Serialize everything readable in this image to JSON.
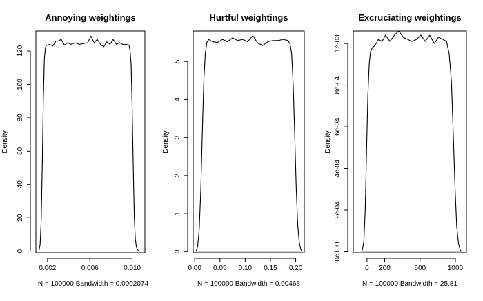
{
  "chart_data": [
    {
      "type": "line",
      "title": "Annoying weightings",
      "xlabel": "N = 100000   Bandwidth = 0.0002074",
      "ylabel": "Density",
      "xlim": [
        0.0009,
        0.0112
      ],
      "ylim": [
        -1,
        132
      ],
      "xticks": [
        0.002,
        0.006,
        0.01
      ],
      "xtick_labels": [
        "0.002",
        "0.006",
        "0.010"
      ],
      "yticks": [
        0,
        20,
        40,
        60,
        80,
        100,
        120
      ],
      "ytick_labels": [
        "0",
        "20",
        "40",
        "60",
        "80",
        "100",
        "120"
      ],
      "baseline": 0,
      "x": [
        0.0012,
        0.0013,
        0.0014,
        0.0015,
        0.0016,
        0.0017,
        0.0018,
        0.0019,
        0.002,
        0.0022,
        0.0025,
        0.0028,
        0.003,
        0.0033,
        0.0036,
        0.0039,
        0.0042,
        0.0046,
        0.005,
        0.0054,
        0.0058,
        0.0061,
        0.0064,
        0.0067,
        0.007,
        0.0073,
        0.0076,
        0.0079,
        0.0082,
        0.0085,
        0.0088,
        0.0091,
        0.0094,
        0.0097,
        0.0098,
        0.0099,
        0.01,
        0.0101,
        0.0102,
        0.0103,
        0.0104,
        0.0105,
        0.0106
      ],
      "y": [
        0.5,
        4,
        18,
        50,
        90,
        115,
        122,
        123.5,
        123.5,
        124,
        123,
        126,
        126,
        127,
        123.5,
        125,
        124,
        125,
        124,
        124.5,
        125,
        129,
        125,
        127,
        124,
        122.5,
        125.5,
        124,
        127,
        124,
        125,
        124,
        124,
        123.5,
        120,
        112,
        85,
        50,
        20,
        7,
        2.5,
        0.8,
        0.3
      ]
    },
    {
      "type": "line",
      "title": "Hurtful weightings",
      "xlabel": "N = 100000   Bandwidth = 0.00468",
      "ylabel": "Density",
      "xlim": [
        -0.003,
        0.217
      ],
      "ylim": [
        -0.03,
        5.8
      ],
      "xticks": [
        0.0,
        0.05,
        0.1,
        0.15,
        0.2
      ],
      "xtick_labels": [
        "0.00",
        "0.05",
        "0.10",
        "0.15",
        "0.20"
      ],
      "yticks": [
        0,
        1,
        2,
        3,
        4,
        5
      ],
      "ytick_labels": [
        "0",
        "1",
        "2",
        "3",
        "4",
        "5"
      ],
      "baseline": 0,
      "x": [
        0.003,
        0.006,
        0.009,
        0.012,
        0.015,
        0.018,
        0.021,
        0.024,
        0.028,
        0.035,
        0.045,
        0.055,
        0.065,
        0.075,
        0.085,
        0.095,
        0.105,
        0.115,
        0.125,
        0.135,
        0.145,
        0.155,
        0.165,
        0.175,
        0.185,
        0.189,
        0.192,
        0.195,
        0.198,
        0.201,
        0.204,
        0.207,
        0.21,
        0.212
      ],
      "y": [
        0.02,
        0.15,
        0.6,
        1.6,
        3.1,
        4.5,
        5.2,
        5.5,
        5.58,
        5.52,
        5.5,
        5.58,
        5.52,
        5.62,
        5.55,
        5.58,
        5.52,
        5.68,
        5.48,
        5.42,
        5.52,
        5.55,
        5.55,
        5.58,
        5.55,
        5.45,
        5.2,
        4.4,
        3.1,
        1.7,
        0.7,
        0.25,
        0.06,
        0.02
      ]
    },
    {
      "type": "line",
      "title": "Excruciating weightings",
      "xlabel": "N = 100000   Bandwidth = 25.81",
      "ylabel": "Density",
      "xlim": [
        -155,
        1125
      ],
      "ylim": [
        -5e-06,
        0.00106
      ],
      "xticks": [
        0,
        200,
        600,
        1000
      ],
      "xtick_labels": [
        "0",
        "200",
        "600",
        "1000"
      ],
      "yticks": [
        0.0,
        0.0002,
        0.0004,
        0.0006,
        0.0008,
        0.001
      ],
      "ytick_labels": [
        "0e+00",
        "2e-04",
        "4e-04",
        "6e-04",
        "8e-04",
        "1e-03"
      ],
      "baseline": 0,
      "x": [
        -55,
        -35,
        -20,
        -5,
        10,
        25,
        40,
        60,
        90,
        130,
        170,
        210,
        260,
        310,
        360,
        410,
        460,
        510,
        560,
        610,
        660,
        710,
        760,
        810,
        860,
        900,
        930,
        955,
        975,
        995,
        1015,
        1035,
        1055,
        1070
      ],
      "y": [
        5e-06,
        5e-05,
        0.0002,
        0.00048,
        0.00075,
        0.0009,
        0.00096,
        0.00098,
        0.00099,
        0.00102,
        0.00101,
        0.00104,
        0.00101,
        0.00104,
        0.00106,
        0.00103,
        0.00102,
        0.00101,
        0.00102,
        0.00104,
        0.00101,
        0.00104,
        0.001,
        0.00103,
        0.00102,
        0.00101,
        0.00095,
        0.00082,
        0.00058,
        0.00032,
        0.00012,
        4e-05,
        8e-06,
        2e-06
      ]
    }
  ]
}
